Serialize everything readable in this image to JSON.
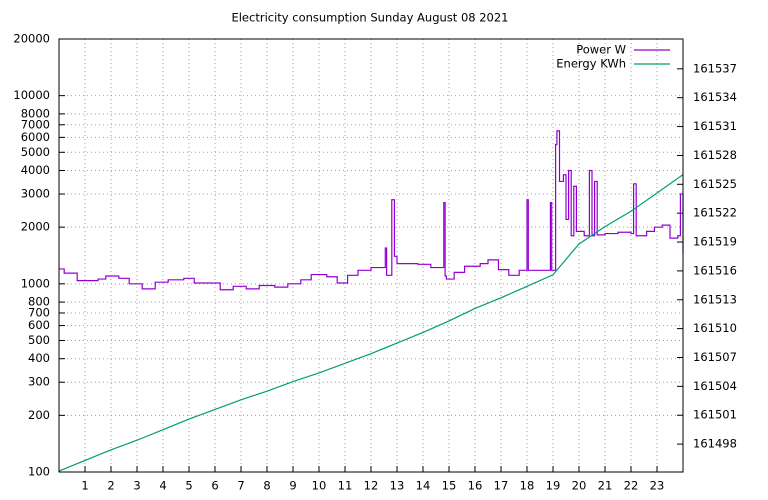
{
  "chart_data": {
    "type": "line",
    "title": "Electricity consumption Sunday August 08 2021",
    "xlim": [
      0,
      24
    ],
    "xticks": [
      1,
      2,
      3,
      4,
      5,
      6,
      7,
      8,
      9,
      10,
      11,
      12,
      13,
      14,
      15,
      16,
      17,
      18,
      19,
      20,
      21,
      22,
      23
    ],
    "ylim": [
      100,
      20000
    ],
    "ylog": true,
    "yticks": [
      100,
      200,
      300,
      400,
      500,
      600,
      700,
      800,
      1000,
      2000,
      3000,
      4000,
      5000,
      6000,
      7000,
      8000,
      10000,
      20000
    ],
    "y2lim": [
      161495.1,
      161540.1
    ],
    "y2ticks": [
      161498,
      161501,
      161504,
      161507,
      161510,
      161513,
      161516,
      161519,
      161522,
      161525,
      161528,
      161531,
      161534,
      161537
    ],
    "grid": true,
    "legend": "top-right",
    "series": [
      {
        "name": "Power W",
        "color": "#9400d3",
        "step": true,
        "x": [
          0,
          0.2,
          0.7,
          1.5,
          1.8,
          2.3,
          2.7,
          3.2,
          3.7,
          4.2,
          4.8,
          5.2,
          6.2,
          6.7,
          7.2,
          7.7,
          8.3,
          8.8,
          9.3,
          9.7,
          10.3,
          10.7,
          11.1,
          11.5,
          12.0,
          12.55,
          12.6,
          12.8,
          12.9,
          13.0,
          13.8,
          14.3,
          14.8,
          14.85,
          14.9,
          15.2,
          15.6,
          16.2,
          16.5,
          16.9,
          17.3,
          17.7,
          18.0,
          18.05,
          18.9,
          18.95,
          19.1,
          19.15,
          19.25,
          19.4,
          19.5,
          19.6,
          19.7,
          19.8,
          19.9,
          20.2,
          20.4,
          20.5,
          20.6,
          20.7,
          21.0,
          21.5,
          22.0,
          22.1,
          22.2,
          22.6,
          22.9,
          23.2,
          23.5,
          23.8,
          23.9,
          24
        ],
        "values": [
          1200,
          1140,
          1040,
          1060,
          1100,
          1070,
          1000,
          940,
          1020,
          1050,
          1070,
          1010,
          930,
          970,
          940,
          980,
          960,
          1000,
          1050,
          1120,
          1090,
          1010,
          1110,
          1180,
          1220,
          1550,
          1110,
          2800,
          1400,
          1280,
          1270,
          1220,
          2700,
          1100,
          1060,
          1150,
          1240,
          1280,
          1340,
          1190,
          1110,
          1180,
          2800,
          1180,
          2700,
          1180,
          5500,
          6500,
          3500,
          3800,
          2200,
          4000,
          1800,
          3300,
          1900,
          1800,
          4000,
          1800,
          3500,
          1820,
          1850,
          1880,
          1850,
          3400,
          1800,
          1900,
          2000,
          2050,
          1750,
          1800,
          3000,
          1450
        ]
      },
      {
        "name": "Energy KWh",
        "color": "#009e73",
        "axis": "y2",
        "x": [
          0,
          1,
          2,
          3,
          4,
          5,
          6,
          7,
          8,
          9,
          10,
          11,
          12,
          13,
          14,
          15,
          16,
          17,
          18,
          19,
          20,
          21,
          22,
          23,
          24
        ],
        "values": [
          161495.2,
          161496.3,
          161497.4,
          161498.4,
          161499.5,
          161500.6,
          161501.6,
          161502.6,
          161503.5,
          161504.5,
          161505.4,
          161506.4,
          161507.4,
          161508.5,
          161509.6,
          161510.8,
          161512.1,
          161513.2,
          161514.4,
          161515.6,
          161518.8,
          161520.6,
          161522.2,
          161524.1,
          161526.0
        ]
      }
    ]
  }
}
